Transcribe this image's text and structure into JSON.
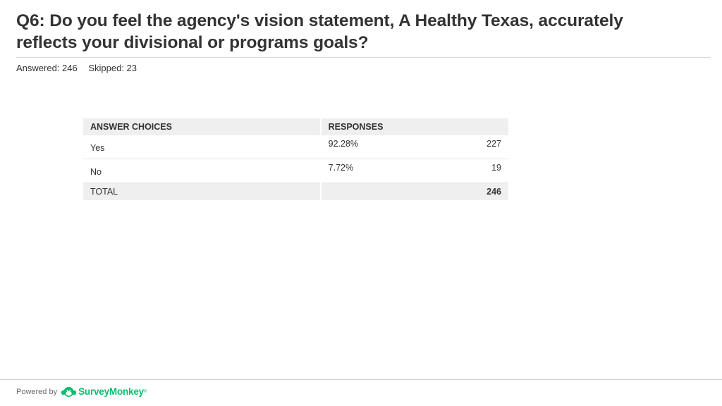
{
  "question": {
    "title": "Q6: Do you feel the agency's vision statement, A Healthy Texas, accurately reflects your divisional or programs goals?",
    "answered": "Answered: 246",
    "skipped": "Skipped: 23"
  },
  "table": {
    "headers": [
      "ANSWER CHOICES",
      "RESPONSES"
    ],
    "rows": [
      {
        "choice": "Yes",
        "percent": "92.28%",
        "count": "227"
      },
      {
        "choice": "No",
        "percent": "7.72%",
        "count": "19"
      }
    ],
    "total_label": "TOTAL",
    "total_count": "246"
  },
  "chart_data": {
    "type": "table",
    "categories": [
      "Yes",
      "No"
    ],
    "series": [
      {
        "name": "RESPONSES",
        "values": [
          227,
          19
        ]
      }
    ],
    "percentages": [
      92.28,
      7.72
    ],
    "total": 246
  },
  "footer": {
    "powered_by": "Powered by",
    "brand": "SurveyMonkey",
    "brand_mark": "®",
    "logo_icon": "surveymonkey-logo-icon"
  },
  "colors": {
    "brand_green": "#00bf6f",
    "header_bg": "#efefef",
    "text": "#333333"
  }
}
